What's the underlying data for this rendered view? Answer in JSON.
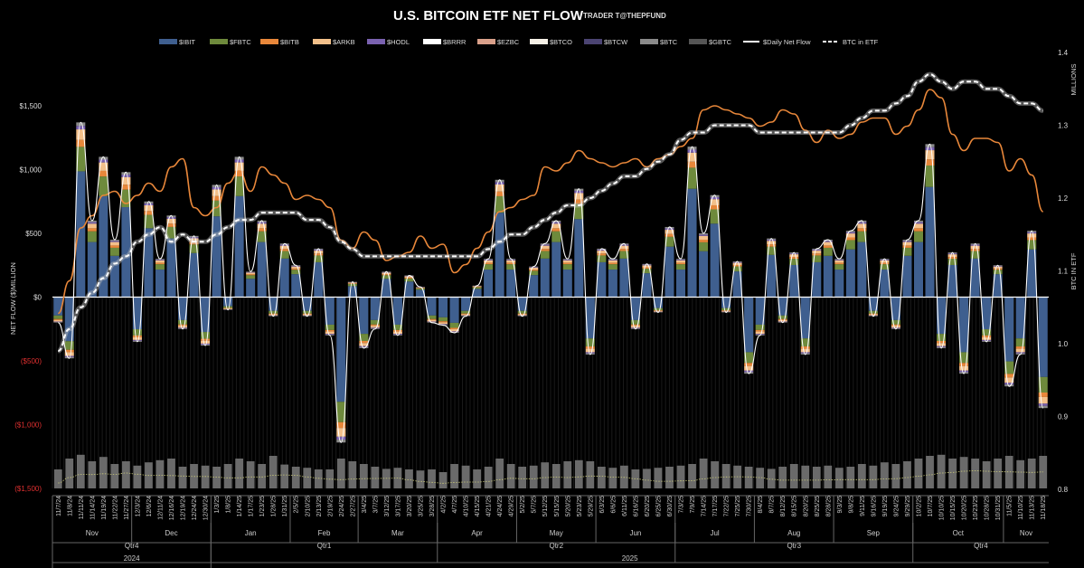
{
  "chart_data": {
    "type": "bar",
    "title": "U.S. BITCOIN ETF NET FLOW",
    "subtitle": "TRADER T@THEPFUND",
    "ylabel": "NET FLOW ($)MILLION",
    "y2label": "BTC IN ETF",
    "y2units": "MILLIONS",
    "ylim": [
      -1500,
      1500
    ],
    "y2lim": [
      0.8,
      1.4
    ],
    "yticks": [
      "$1,500",
      "$1,000",
      "$500",
      "$0",
      "($500)",
      "($1,000)",
      "($1,500)"
    ],
    "y2ticks": [
      "1.4",
      "1.3",
      "1.2",
      "1.1",
      "1.0",
      "0.9",
      "0.8"
    ],
    "legend": [
      {
        "name": "$IBIT",
        "color": "#3f5f8f",
        "kind": "bar"
      },
      {
        "name": "$FBTC",
        "color": "#6e8a3c",
        "kind": "bar"
      },
      {
        "name": "$BITB",
        "color": "#e8873a",
        "kind": "bar"
      },
      {
        "name": "$ARKB",
        "color": "#f3c08a",
        "kind": "bar"
      },
      {
        "name": "$HODL",
        "color": "#7a62b0",
        "kind": "bar"
      },
      {
        "name": "$BRRR",
        "color": "#ffffff",
        "kind": "bar"
      },
      {
        "name": "$EZBC",
        "color": "#d9a08a",
        "kind": "bar"
      },
      {
        "name": "$BTCO",
        "color": "#f5f0e6",
        "kind": "bar"
      },
      {
        "name": "$BTCW",
        "color": "#4b4472",
        "kind": "bar"
      },
      {
        "name": "$BTC",
        "color": "#8a8a8a",
        "kind": "bar"
      },
      {
        "name": "$GBTC",
        "color": "#555555",
        "kind": "bar"
      },
      {
        "name": "$Daily Net Flow",
        "color": "#ffffff",
        "kind": "line"
      },
      {
        "name": "BTC in ETF",
        "color": "#ffffff",
        "kind": "dash"
      }
    ],
    "dates": [
      "11/7/24",
      "11/8/24",
      "11/11/24",
      "11/14/24",
      "11/19/24",
      "11/22/24",
      "11/27/24",
      "12/3/24",
      "12/6/24",
      "12/11/24",
      "12/16/24",
      "12/19/24",
      "12/24/24",
      "12/30/24",
      "1/3/25",
      "1/8/25",
      "1/14/25",
      "1/17/25",
      "1/23/25",
      "1/28/25",
      "1/31/25",
      "2/5/25",
      "2/10/25",
      "2/13/25",
      "2/19/25",
      "2/24/25",
      "2/27/25",
      "3/4/25",
      "3/7/25",
      "3/12/25",
      "3/17/25",
      "3/20/25",
      "3/25/25",
      "3/28/25",
      "4/2/25",
      "4/7/25",
      "4/10/25",
      "4/15/25",
      "4/21/25",
      "4/24/25",
      "4/29/25",
      "5/2/25",
      "5/7/25",
      "5/12/25",
      "5/15/25",
      "5/20/25",
      "5/23/25",
      "5/29/25",
      "6/3/25",
      "6/6/25",
      "6/11/25",
      "6/16/25",
      "6/20/25",
      "6/25/25",
      "6/30/25",
      "7/3/25",
      "7/9/25",
      "7/14/25",
      "7/17/25",
      "7/22/25",
      "7/25/25",
      "7/30/25",
      "8/4/25",
      "8/7/25",
      "8/12/25",
      "8/15/25",
      "8/20/25",
      "8/25/25",
      "8/28/25",
      "9/3/25",
      "9/8/25",
      "9/11/25",
      "9/16/25",
      "9/19/25",
      "9/24/25",
      "9/29/25",
      "10/2/25",
      "10/7/25",
      "10/10/25",
      "10/15/25",
      "10/20/25",
      "10/23/25",
      "10/28/25",
      "10/31/25",
      "11/5/25",
      "11/10/25",
      "11/13/25",
      "11/18/25"
    ],
    "months": [
      {
        "label": "Nov",
        "from": 0,
        "to": 6
      },
      {
        "label": "Dec",
        "from": 7,
        "to": 13
      },
      {
        "label": "Jan",
        "from": 14,
        "to": 20
      },
      {
        "label": "Feb",
        "from": 21,
        "to": 26
      },
      {
        "label": "Mar",
        "from": 27,
        "to": 33
      },
      {
        "label": "Apr",
        "from": 34,
        "to": 40
      },
      {
        "label": "May",
        "from": 41,
        "to": 47
      },
      {
        "label": "Jun",
        "from": 48,
        "to": 54
      },
      {
        "label": "Jul",
        "from": 55,
        "to": 61
      },
      {
        "label": "Aug",
        "from": 62,
        "to": 68
      },
      {
        "label": "Sep",
        "from": 69,
        "to": 75
      },
      {
        "label": "Oct",
        "from": 76,
        "to": 83
      },
      {
        "label": "Nov",
        "from": 84,
        "to": 87
      }
    ],
    "quarters": [
      {
        "label": "Qtr4",
        "from": 0,
        "to": 13
      },
      {
        "label": "Qtr1",
        "from": 14,
        "to": 33
      },
      {
        "label": "Qtr2",
        "from": 34,
        "to": 54
      },
      {
        "label": "Qtr3",
        "from": 55,
        "to": 75
      },
      {
        "label": "Qtr4",
        "from": 76,
        "to": 87
      }
    ],
    "years": [
      {
        "label": "2024",
        "from": 0,
        "to": 13
      },
      {
        "label": "2025",
        "from": 14,
        "to": 87
      }
    ],
    "daily_net_flow": [
      -200,
      -480,
      1370,
      600,
      1100,
      450,
      980,
      -350,
      750,
      300,
      640,
      -250,
      480,
      -380,
      880,
      -100,
      1100,
      200,
      600,
      -150,
      420,
      250,
      -150,
      380,
      -300,
      -1140,
      120,
      -400,
      -250,
      200,
      -300,
      170,
      80,
      -200,
      -220,
      -280,
      -150,
      90,
      300,
      920,
      300,
      -150,
      240,
      420,
      600,
      300,
      850,
      -450,
      380,
      300,
      420,
      -250,
      260,
      -120,
      550,
      300,
      1180,
      500,
      800,
      -120,
      280,
      -600,
      -300,
      460,
      -200,
      350,
      -450,
      380,
      450,
      300,
      520,
      600,
      -150,
      300,
      -250,
      450,
      600,
      1200,
      -400,
      350,
      -600,
      420,
      -350,
      250,
      -700,
      -450,
      520,
      -870
    ],
    "btc_in_etf": [
      0.99,
      1.02,
      1.05,
      1.07,
      1.09,
      1.11,
      1.12,
      1.14,
      1.15,
      1.16,
      1.14,
      1.15,
      1.14,
      1.14,
      1.15,
      1.16,
      1.17,
      1.17,
      1.18,
      1.18,
      1.18,
      1.18,
      1.17,
      1.17,
      1.16,
      1.14,
      1.13,
      1.12,
      1.12,
      1.12,
      1.12,
      1.12,
      1.12,
      1.12,
      1.12,
      1.12,
      1.12,
      1.12,
      1.13,
      1.14,
      1.15,
      1.15,
      1.16,
      1.17,
      1.18,
      1.19,
      1.19,
      1.2,
      1.21,
      1.22,
      1.23,
      1.23,
      1.24,
      1.25,
      1.26,
      1.28,
      1.29,
      1.29,
      1.3,
      1.3,
      1.3,
      1.3,
      1.29,
      1.29,
      1.29,
      1.29,
      1.29,
      1.29,
      1.29,
      1.29,
      1.3,
      1.31,
      1.32,
      1.32,
      1.33,
      1.34,
      1.36,
      1.37,
      1.36,
      1.35,
      1.36,
      1.36,
      1.35,
      1.35,
      1.34,
      1.33,
      1.33,
      1.32
    ],
    "btc_price_line_k": [
      68,
      76,
      89,
      92,
      97,
      98,
      95,
      97,
      100,
      98,
      104,
      106,
      94,
      92,
      94,
      100,
      103,
      98,
      104,
      102,
      100,
      96,
      97,
      96,
      94,
      86,
      84,
      88,
      86,
      81,
      82,
      83,
      87,
      84,
      85,
      78,
      80,
      84,
      88,
      93,
      94,
      96,
      97,
      104,
      103,
      105,
      108,
      106,
      105,
      104,
      105,
      106,
      104,
      106,
      107,
      109,
      111,
      118,
      119,
      118,
      117,
      116,
      114,
      115,
      118,
      117,
      113,
      110,
      113,
      111,
      112,
      115,
      116,
      116,
      112,
      114,
      118,
      123,
      121,
      112,
      108,
      111,
      111,
      110,
      103,
      106,
      102,
      93
    ],
    "volume_rel": [
      0.35,
      0.55,
      0.62,
      0.5,
      0.58,
      0.45,
      0.5,
      0.42,
      0.48,
      0.52,
      0.55,
      0.4,
      0.45,
      0.42,
      0.4,
      0.45,
      0.55,
      0.5,
      0.45,
      0.6,
      0.44,
      0.4,
      0.38,
      0.35,
      0.35,
      0.55,
      0.5,
      0.45,
      0.4,
      0.36,
      0.38,
      0.35,
      0.33,
      0.35,
      0.3,
      0.45,
      0.42,
      0.35,
      0.4,
      0.55,
      0.45,
      0.4,
      0.42,
      0.48,
      0.45,
      0.5,
      0.52,
      0.5,
      0.4,
      0.38,
      0.42,
      0.35,
      0.36,
      0.38,
      0.4,
      0.42,
      0.45,
      0.55,
      0.5,
      0.45,
      0.42,
      0.4,
      0.38,
      0.36,
      0.4,
      0.45,
      0.42,
      0.4,
      0.42,
      0.38,
      0.4,
      0.45,
      0.42,
      0.48,
      0.45,
      0.5,
      0.55,
      0.6,
      0.62,
      0.55,
      0.58,
      0.55,
      0.5,
      0.55,
      0.6,
      0.52,
      0.55,
      0.6
    ]
  }
}
